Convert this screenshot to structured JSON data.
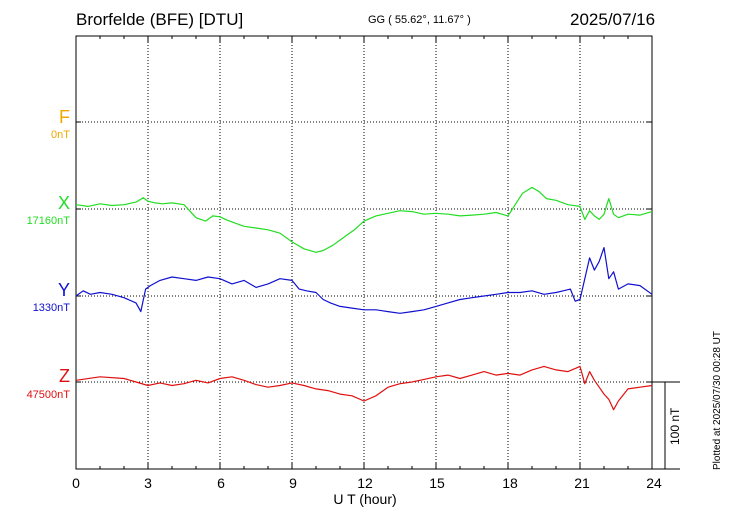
{
  "header": {
    "station": "Brorfelde (BFE)  [DTU]",
    "coords": "GG ( 55.62°,  11.67° )",
    "date": "2025/07/16",
    "plotted": "Plotted at 2025/07/30 00:28 UT"
  },
  "components": [
    {
      "letter": "F",
      "baseline": "0nT",
      "color": "#f0a800"
    },
    {
      "letter": "X",
      "baseline": "17160nT",
      "color": "#22dd22"
    },
    {
      "letter": "Y",
      "baseline": "1330nT",
      "color": "#1010d0"
    },
    {
      "letter": "Z",
      "baseline": "47500nT",
      "color": "#e01010"
    }
  ],
  "scale_bar": {
    "label": "100 nT",
    "value_nT": 100
  },
  "chart_data": {
    "type": "line",
    "title": "Brorfelde (BFE)  [DTU]",
    "xlabel": "U T (hour)",
    "x_ticks": [
      "0",
      "3",
      "6",
      "9",
      "12",
      "15",
      "18",
      "21",
      "24"
    ],
    "xlim": [
      0,
      24
    ],
    "units": "nT",
    "grid": true,
    "series": [
      {
        "name": "X",
        "color": "#22dd22",
        "baseline_nT": 17160,
        "x": [
          0,
          0.5,
          1,
          1.5,
          2,
          2.5,
          2.8,
          3,
          3.3,
          3.6,
          4,
          4.5,
          5,
          5.4,
          5.7,
          6,
          6.3,
          6.6,
          7,
          7.5,
          8,
          8.5,
          9,
          9.5,
          10,
          10.3,
          10.7,
          11,
          11.3,
          11.6,
          12,
          12.5,
          13,
          13.5,
          14,
          14.5,
          15,
          15.5,
          16,
          16.5,
          17,
          17.5,
          18,
          18.3,
          18.6,
          19,
          19.3,
          19.6,
          20,
          20.5,
          21,
          21.2,
          21.4,
          21.6,
          21.8,
          22,
          22.2,
          22.4,
          22.6,
          23,
          23.5,
          24
        ],
        "values": [
          5,
          3,
          6,
          4,
          5,
          8,
          13,
          9,
          7,
          6,
          7,
          5,
          -10,
          -14,
          -8,
          -9,
          -13,
          -16,
          -20,
          -22,
          -24,
          -28,
          -38,
          -46,
          -50,
          -48,
          -42,
          -36,
          -30,
          -24,
          -14,
          -8,
          -5,
          -2,
          -3,
          -6,
          -5,
          -6,
          -8,
          -7,
          -6,
          -4,
          -8,
          5,
          18,
          25,
          20,
          12,
          10,
          5,
          3,
          -12,
          -2,
          -8,
          -12,
          -6,
          12,
          -6,
          -10,
          -6,
          -7,
          -3
        ]
      },
      {
        "name": "Y",
        "color": "#1010d0",
        "baseline_nT": 1330,
        "x": [
          0,
          0.3,
          0.6,
          1,
          1.5,
          2,
          2.5,
          2.7,
          2.9,
          3.1,
          3.5,
          4,
          4.5,
          5,
          5.5,
          6,
          6.5,
          7,
          7.5,
          8,
          8.5,
          9,
          9.3,
          9.6,
          10,
          10.3,
          10.6,
          11,
          11.5,
          12,
          12.5,
          13,
          13.5,
          14,
          14.5,
          15,
          15.5,
          16,
          16.5,
          17,
          17.5,
          18,
          18.5,
          19,
          19.5,
          20,
          20.3,
          20.6,
          20.8,
          21,
          21.2,
          21.4,
          21.6,
          21.8,
          22,
          22.2,
          22.4,
          22.6,
          23,
          23.5,
          24
        ],
        "values": [
          0,
          6,
          2,
          4,
          2,
          -2,
          -8,
          -18,
          8,
          12,
          18,
          22,
          20,
          18,
          22,
          20,
          14,
          18,
          10,
          14,
          20,
          18,
          8,
          6,
          4,
          -4,
          -8,
          -12,
          -14,
          -16,
          -16,
          -18,
          -20,
          -18,
          -16,
          -12,
          -8,
          -4,
          -2,
          0,
          2,
          4,
          4,
          6,
          2,
          4,
          6,
          8,
          -6,
          -4,
          20,
          44,
          30,
          40,
          56,
          20,
          28,
          8,
          14,
          12,
          2
        ]
      },
      {
        "name": "Z",
        "color": "#e01010",
        "baseline_nT": 47500,
        "x": [
          0,
          1,
          2,
          2.5,
          3,
          3.5,
          4,
          4.5,
          5,
          5.5,
          6,
          6.5,
          7,
          7.5,
          8,
          8.5,
          9,
          9.5,
          10,
          10.5,
          11,
          11.5,
          12,
          12.5,
          13,
          13.5,
          14,
          14.5,
          15,
          15.5,
          16,
          16.5,
          17,
          17.5,
          18,
          18.5,
          19,
          19.5,
          20,
          20.5,
          21,
          21.2,
          21.4,
          21.6,
          21.8,
          22,
          22.2,
          22.4,
          22.6,
          23,
          23.5,
          24
        ],
        "values": [
          2,
          6,
          4,
          0,
          -4,
          -1,
          -4,
          -2,
          2,
          -1,
          4,
          6,
          2,
          -3,
          -6,
          -4,
          -1,
          -4,
          -8,
          -10,
          -14,
          -16,
          -22,
          -16,
          -6,
          -2,
          0,
          3,
          6,
          8,
          4,
          8,
          12,
          8,
          10,
          8,
          14,
          18,
          14,
          12,
          18,
          -2,
          12,
          2,
          -6,
          -14,
          -20,
          -32,
          -22,
          -8,
          -6,
          -4
        ]
      }
    ]
  }
}
